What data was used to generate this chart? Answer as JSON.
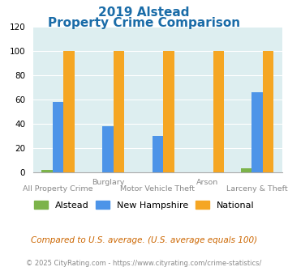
{
  "title_line1": "2019 Alstead",
  "title_line2": "Property Crime Comparison",
  "categories": [
    "All Property Crime",
    "Burglary",
    "Motor Vehicle Theft",
    "Arson",
    "Larceny & Theft"
  ],
  "cat_row1": [
    "",
    "Burglary",
    "",
    "Arson",
    ""
  ],
  "cat_row2": [
    "All Property Crime",
    "",
    "Motor Vehicle Theft",
    "",
    "Larceny & Theft"
  ],
  "alstead": [
    2,
    0,
    0,
    0,
    3
  ],
  "new_hampshire": [
    58,
    38,
    30,
    0,
    66
  ],
  "national": [
    100,
    100,
    100,
    100,
    100
  ],
  "color_alstead": "#7cb34a",
  "color_nh": "#4d94e8",
  "color_national": "#f5a623",
  "ylim": [
    0,
    120
  ],
  "yticks": [
    0,
    20,
    40,
    60,
    80,
    100,
    120
  ],
  "bg_color": "#ddeef0",
  "fig_bg": "#ffffff",
  "title_color": "#1a6ca8",
  "footer_text": "Compared to U.S. average. (U.S. average equals 100)",
  "footer_color": "#cc6600",
  "copyright_text": "© 2025 CityRating.com - https://www.cityrating.com/crime-statistics/",
  "copyright_color": "#888888",
  "legend_labels": [
    "Alstead",
    "New Hampshire",
    "National"
  ],
  "bar_width": 0.22,
  "grid_color": "#ffffff"
}
